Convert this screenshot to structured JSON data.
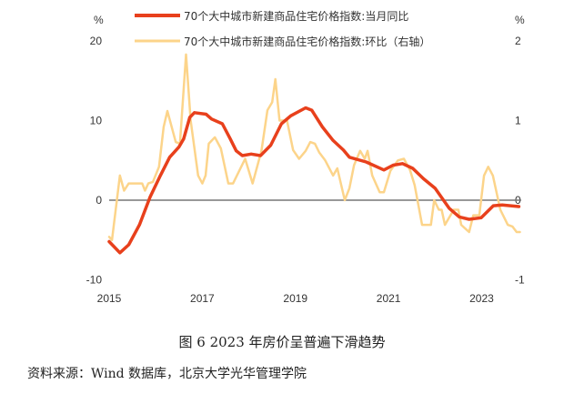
{
  "chart_data": {
    "type": "line",
    "title": "",
    "left_axis": {
      "unit": "%",
      "ylim": [
        -10,
        20
      ],
      "ticks": [
        "-10",
        "0",
        "10",
        "20"
      ]
    },
    "right_axis": {
      "unit": "%",
      "ylim": [
        -1,
        2
      ],
      "ticks": [
        "-1",
        "0",
        "1",
        "2"
      ]
    },
    "x_axis": {
      "xlim": [
        2015,
        2023.85
      ],
      "ticks": [
        "2015",
        "2017",
        "2019",
        "2021",
        "2023"
      ]
    },
    "legend_position": "top",
    "grid": false,
    "series": [
      {
        "name": "70个大中城市新建商品住宅价格指数:当月同比",
        "axis": "left",
        "color": "#e8401c",
        "points": [
          [
            2015.0,
            -5.2
          ],
          [
            2015.23,
            -6.6
          ],
          [
            2015.42,
            -5.6
          ],
          [
            2015.65,
            -3.1
          ],
          [
            2015.88,
            0.4
          ],
          [
            2016.1,
            3.1
          ],
          [
            2016.3,
            5.4
          ],
          [
            2016.5,
            6.7
          ],
          [
            2016.6,
            7.7
          ],
          [
            2016.73,
            10.4
          ],
          [
            2016.83,
            11.0
          ],
          [
            2017.08,
            10.8
          ],
          [
            2017.2,
            10.2
          ],
          [
            2017.43,
            9.6
          ],
          [
            2017.6,
            7.7
          ],
          [
            2017.73,
            6.2
          ],
          [
            2017.86,
            5.6
          ],
          [
            2018.05,
            5.8
          ],
          [
            2018.25,
            5.6
          ],
          [
            2018.47,
            6.9
          ],
          [
            2018.7,
            9.6
          ],
          [
            2018.9,
            10.6
          ],
          [
            2019.22,
            11.6
          ],
          [
            2019.35,
            11.3
          ],
          [
            2019.58,
            9.2
          ],
          [
            2019.81,
            7.5
          ],
          [
            2020.03,
            6.3
          ],
          [
            2020.16,
            5.4
          ],
          [
            2020.52,
            4.8
          ],
          [
            2020.9,
            3.8
          ],
          [
            2021.1,
            4.4
          ],
          [
            2021.3,
            4.6
          ],
          [
            2021.52,
            4.0
          ],
          [
            2021.75,
            2.7
          ],
          [
            2022.0,
            1.5
          ],
          [
            2022.3,
            -1.0
          ],
          [
            2022.52,
            -2.1
          ],
          [
            2022.73,
            -2.4
          ],
          [
            2022.99,
            -2.2
          ],
          [
            2023.25,
            -0.7
          ],
          [
            2023.44,
            -0.6
          ],
          [
            2023.8,
            -0.8
          ]
        ]
      },
      {
        "name": "70个大中城市新建商品住宅价格指数:环比（右轴）",
        "axis": "right",
        "color": "#fcd48a",
        "points": [
          [
            2015.0,
            -0.46
          ],
          [
            2015.06,
            -0.5
          ],
          [
            2015.23,
            0.31
          ],
          [
            2015.32,
            0.12
          ],
          [
            2015.42,
            0.21
          ],
          [
            2015.71,
            0.21
          ],
          [
            2015.77,
            0.12
          ],
          [
            2015.84,
            0.21
          ],
          [
            2015.94,
            0.23
          ],
          [
            2016.07,
            0.42
          ],
          [
            2016.17,
            0.92
          ],
          [
            2016.25,
            1.12
          ],
          [
            2016.43,
            0.73
          ],
          [
            2016.52,
            0.71
          ],
          [
            2016.65,
            1.83
          ],
          [
            2016.75,
            1.0
          ],
          [
            2016.91,
            0.31
          ],
          [
            2017.0,
            0.21
          ],
          [
            2017.07,
            0.31
          ],
          [
            2017.14,
            0.71
          ],
          [
            2017.27,
            0.79
          ],
          [
            2017.4,
            0.65
          ],
          [
            2017.56,
            0.21
          ],
          [
            2017.66,
            0.21
          ],
          [
            2017.92,
            0.52
          ],
          [
            2018.08,
            0.21
          ],
          [
            2018.27,
            0.62
          ],
          [
            2018.4,
            1.13
          ],
          [
            2018.5,
            1.23
          ],
          [
            2018.57,
            1.52
          ],
          [
            2018.66,
            1.0
          ],
          [
            2018.82,
            1.0
          ],
          [
            2018.95,
            0.63
          ],
          [
            2019.08,
            0.52
          ],
          [
            2019.22,
            0.62
          ],
          [
            2019.32,
            0.73
          ],
          [
            2019.42,
            0.71
          ],
          [
            2019.51,
            0.6
          ],
          [
            2019.64,
            0.5
          ],
          [
            2019.81,
            0.31
          ],
          [
            2019.9,
            0.4
          ],
          [
            2020.06,
            0.0
          ],
          [
            2020.16,
            0.15
          ],
          [
            2020.26,
            0.44
          ],
          [
            2020.39,
            0.62
          ],
          [
            2020.49,
            0.52
          ],
          [
            2020.55,
            0.62
          ],
          [
            2020.65,
            0.31
          ],
          [
            2020.81,
            0.1
          ],
          [
            2020.9,
            0.1
          ],
          [
            2021.04,
            0.37
          ],
          [
            2021.2,
            0.5
          ],
          [
            2021.33,
            0.52
          ],
          [
            2021.46,
            0.38
          ],
          [
            2021.56,
            0.19
          ],
          [
            2021.72,
            -0.31
          ],
          [
            2021.91,
            -0.31
          ],
          [
            2021.98,
            0.0
          ],
          [
            2022.08,
            -0.12
          ],
          [
            2022.14,
            -0.12
          ],
          [
            2022.21,
            -0.31
          ],
          [
            2022.4,
            -0.12
          ],
          [
            2022.5,
            -0.12
          ],
          [
            2022.56,
            -0.31
          ],
          [
            2022.73,
            -0.4
          ],
          [
            2022.82,
            -0.19
          ],
          [
            2022.95,
            -0.19
          ],
          [
            2023.05,
            0.31
          ],
          [
            2023.14,
            0.42
          ],
          [
            2023.24,
            0.31
          ],
          [
            2023.4,
            -0.12
          ],
          [
            2023.56,
            -0.31
          ],
          [
            2023.66,
            -0.33
          ],
          [
            2023.75,
            -0.4
          ],
          [
            2023.82,
            -0.4
          ]
        ]
      }
    ]
  },
  "caption": "图 6  2023 年房价呈普遍下滑趋势",
  "source": "资料来源：Wind 数据库，北京大学光华管理学院"
}
